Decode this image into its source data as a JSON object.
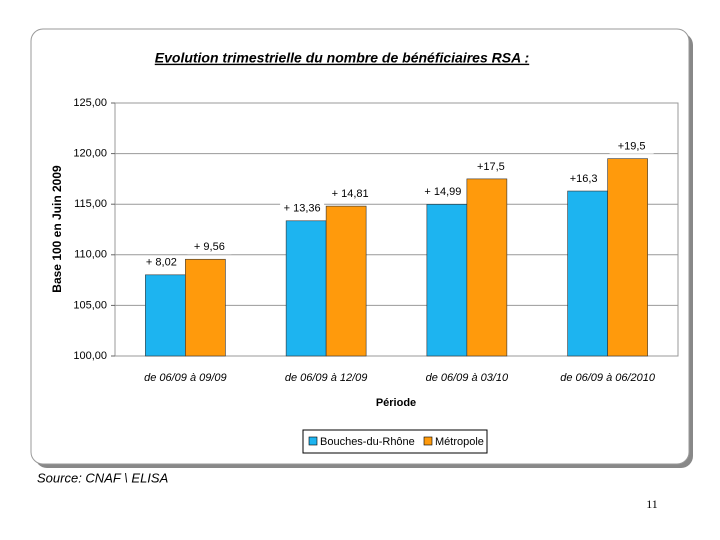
{
  "chart_data": {
    "type": "bar",
    "title": "Evolution trimestrielle du nombre de bénéficiaires RSA :",
    "y_label": "Base 100 en Juin 2009",
    "x_label": "Période",
    "categories": [
      "de 06/09 à 09/09",
      "de 06/09 à 12/09",
      "de 06/09 à 03/10",
      "de 06/09 à 06/2010"
    ],
    "series": [
      {
        "name": "Bouches-du-Rhône",
        "color": "#1db4f0",
        "values": [
          108.02,
          113.36,
          114.99,
          116.3
        ],
        "value_labels": [
          "+ 8,02",
          "+ 13,36",
          "+ 14,99",
          "+16,3"
        ]
      },
      {
        "name": "Métropole",
        "color": "#ff9a0c",
        "values": [
          109.56,
          114.81,
          117.5,
          119.5
        ],
        "value_labels": [
          "+ 9,56",
          "+ 14,81",
          "+17,5",
          "+19,5"
        ]
      }
    ],
    "ylim": [
      100,
      125
    ],
    "yticks": [
      {
        "value": 100,
        "label": "100,00"
      },
      {
        "value": 105,
        "label": "105,00"
      },
      {
        "value": 110,
        "label": "110,00"
      },
      {
        "value": 115,
        "label": "115,00"
      },
      {
        "value": 120,
        "label": "120,00"
      },
      {
        "value": 125,
        "label": "125,00"
      }
    ],
    "grid": true,
    "legend": "bottom"
  },
  "source": "Source: CNAF \\ ELISA",
  "page_number": "11"
}
